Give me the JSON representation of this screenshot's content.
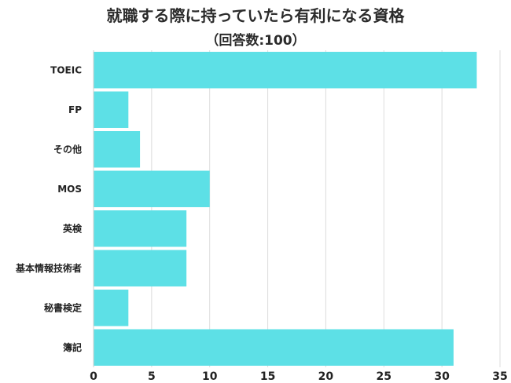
{
  "chart_data": {
    "type": "bar",
    "orientation": "horizontal",
    "title": "就職する際に持っていたら有利になる資格",
    "subtitle": "（回答数:100）",
    "categories": [
      "TOEIC",
      "FP",
      "その他",
      "MOS",
      "英検",
      "基本情報技術者",
      "秘書検定",
      "簿記"
    ],
    "values": [
      33,
      3,
      4,
      10,
      8,
      8,
      3,
      31
    ],
    "xlim": [
      0,
      35
    ],
    "xticks": [
      0,
      5,
      10,
      15,
      20,
      25,
      30,
      35
    ],
    "grid": true,
    "bar_color": "#5de0e6",
    "grid_color": "#dcdcdc"
  }
}
